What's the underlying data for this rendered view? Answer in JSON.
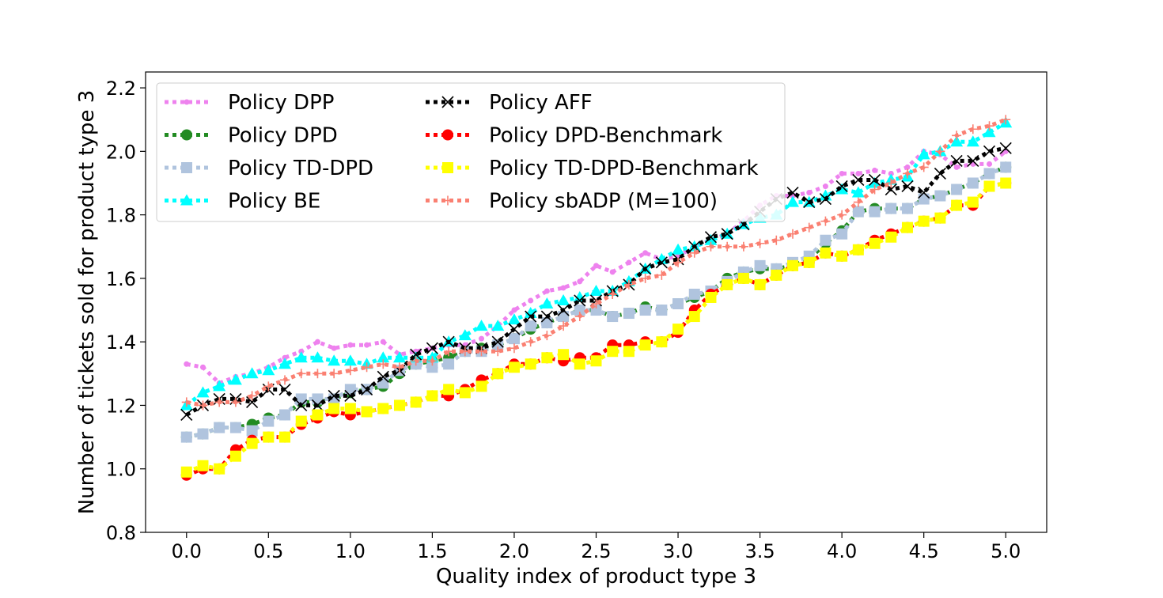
{
  "chart_data": {
    "type": "line",
    "xlabel": "Quality index of product type 3",
    "ylabel": "Number of tickets sold for product type 3",
    "xlim": [
      -0.25,
      5.25
    ],
    "ylim": [
      0.8,
      2.25
    ],
    "xticks": [
      "0.0",
      "0.5",
      "1.0",
      "1.5",
      "2.0",
      "2.5",
      "3.0",
      "3.5",
      "4.0",
      "4.5",
      "5.0"
    ],
    "yticks": [
      "0.8",
      "1.0",
      "1.2",
      "1.4",
      "1.6",
      "1.8",
      "2.0",
      "2.2"
    ],
    "grid": false,
    "legend_position": "top-left",
    "legend_columns": 2,
    "x": [
      0.0,
      0.1,
      0.2,
      0.3,
      0.4,
      0.5,
      0.6,
      0.7,
      0.8,
      0.9,
      1.0,
      1.1,
      1.2,
      1.3,
      1.4,
      1.5,
      1.6,
      1.7,
      1.8,
      1.9,
      2.0,
      2.1,
      2.2,
      2.3,
      2.4,
      2.5,
      2.6,
      2.7,
      2.8,
      2.9,
      3.0,
      3.1,
      3.2,
      3.3,
      3.4,
      3.5,
      3.6,
      3.7,
      3.8,
      3.9,
      4.0,
      4.1,
      4.2,
      4.3,
      4.4,
      4.5,
      4.6,
      4.7,
      4.8,
      4.9,
      5.0
    ],
    "series": [
      {
        "name": "Policy DPP",
        "color": "#ee82ee",
        "marker": "circle-small",
        "values": [
          1.33,
          1.32,
          1.27,
          1.29,
          1.3,
          1.32,
          1.35,
          1.37,
          1.4,
          1.38,
          1.39,
          1.39,
          1.4,
          1.36,
          1.37,
          1.38,
          1.39,
          1.39,
          1.41,
          1.45,
          1.5,
          1.53,
          1.56,
          1.57,
          1.59,
          1.64,
          1.62,
          1.65,
          1.68,
          1.66,
          1.67,
          1.7,
          1.72,
          1.74,
          1.78,
          1.83,
          1.86,
          1.86,
          1.87,
          1.89,
          1.93,
          1.93,
          1.94,
          1.93,
          1.95,
          2.0,
          1.99,
          1.95,
          1.96,
          1.96,
          2.0
        ]
      },
      {
        "name": "Policy DPD",
        "color": "#228b22",
        "marker": "circle",
        "values": [
          1.1,
          1.11,
          1.13,
          1.13,
          1.14,
          1.16,
          1.17,
          1.21,
          1.21,
          1.22,
          1.24,
          1.25,
          1.26,
          1.3,
          1.33,
          1.34,
          1.35,
          1.37,
          1.38,
          1.39,
          1.41,
          1.44,
          1.46,
          1.48,
          1.5,
          1.5,
          1.48,
          1.49,
          1.51,
          1.5,
          1.52,
          1.54,
          1.56,
          1.6,
          1.62,
          1.63,
          1.63,
          1.64,
          1.66,
          1.71,
          1.75,
          1.81,
          1.82,
          1.82,
          1.82,
          1.85,
          1.86,
          1.88,
          1.9,
          1.93,
          1.95
        ]
      },
      {
        "name": "Policy TD-DPD",
        "color": "#b0c4de",
        "marker": "square",
        "values": [
          1.1,
          1.11,
          1.13,
          1.13,
          1.12,
          1.15,
          1.17,
          1.22,
          1.22,
          1.22,
          1.25,
          1.25,
          1.27,
          1.31,
          1.33,
          1.32,
          1.33,
          1.37,
          1.37,
          1.39,
          1.41,
          1.45,
          1.46,
          1.48,
          1.5,
          1.5,
          1.48,
          1.49,
          1.5,
          1.5,
          1.52,
          1.55,
          1.56,
          1.59,
          1.62,
          1.64,
          1.63,
          1.65,
          1.67,
          1.72,
          1.74,
          1.81,
          1.81,
          1.82,
          1.82,
          1.85,
          1.86,
          1.88,
          1.9,
          1.93,
          1.95
        ]
      },
      {
        "name": "Policy BE",
        "color": "#00ffff",
        "marker": "triangle",
        "values": [
          1.2,
          1.24,
          1.26,
          1.28,
          1.3,
          1.31,
          1.33,
          1.35,
          1.35,
          1.34,
          1.34,
          1.33,
          1.35,
          1.35,
          1.35,
          1.35,
          1.4,
          1.42,
          1.45,
          1.45,
          1.47,
          1.49,
          1.52,
          1.53,
          1.54,
          1.56,
          1.56,
          1.59,
          1.63,
          1.66,
          1.69,
          1.7,
          1.72,
          1.74,
          1.77,
          1.79,
          1.8,
          1.84,
          1.84,
          1.86,
          1.88,
          1.87,
          1.9,
          1.91,
          1.92,
          1.99,
          2.0,
          2.03,
          2.03,
          2.06,
          2.09
        ]
      },
      {
        "name": "Policy AFF",
        "color": "#000000",
        "marker": "x",
        "values": [
          1.17,
          1.2,
          1.22,
          1.22,
          1.21,
          1.25,
          1.25,
          1.2,
          1.2,
          1.23,
          1.23,
          1.25,
          1.29,
          1.31,
          1.36,
          1.38,
          1.4,
          1.38,
          1.38,
          1.4,
          1.44,
          1.48,
          1.48,
          1.5,
          1.53,
          1.53,
          1.56,
          1.58,
          1.63,
          1.65,
          1.66,
          1.7,
          1.73,
          1.74,
          1.77,
          1.81,
          1.85,
          1.87,
          1.84,
          1.85,
          1.89,
          1.91,
          1.91,
          1.88,
          1.89,
          1.87,
          1.93,
          1.97,
          1.97,
          2.0,
          2.01
        ]
      },
      {
        "name": "Policy DPD-Benchmark",
        "color": "#ff0000",
        "marker": "circle",
        "values": [
          0.98,
          1.0,
          1.0,
          1.06,
          1.09,
          1.1,
          1.1,
          1.14,
          1.16,
          1.18,
          1.17,
          1.18,
          1.19,
          1.2,
          1.21,
          1.23,
          1.23,
          1.25,
          1.28,
          1.3,
          1.33,
          1.33,
          1.35,
          1.34,
          1.35,
          1.35,
          1.39,
          1.39,
          1.4,
          1.4,
          1.43,
          1.5,
          1.55,
          1.58,
          1.6,
          1.58,
          1.61,
          1.64,
          1.65,
          1.68,
          1.67,
          1.69,
          1.72,
          1.74,
          1.76,
          1.78,
          1.79,
          1.83,
          1.83,
          1.89,
          1.9
        ]
      },
      {
        "name": "Policy TD-DPD-Benchmark",
        "color": "#ffff00",
        "marker": "square",
        "values": [
          0.99,
          1.01,
          1.0,
          1.04,
          1.08,
          1.1,
          1.1,
          1.15,
          1.17,
          1.19,
          1.19,
          1.18,
          1.19,
          1.2,
          1.21,
          1.23,
          1.25,
          1.24,
          1.26,
          1.3,
          1.32,
          1.33,
          1.35,
          1.36,
          1.33,
          1.34,
          1.37,
          1.37,
          1.39,
          1.4,
          1.44,
          1.48,
          1.54,
          1.58,
          1.6,
          1.58,
          1.61,
          1.64,
          1.65,
          1.68,
          1.67,
          1.69,
          1.71,
          1.73,
          1.76,
          1.78,
          1.79,
          1.83,
          1.84,
          1.89,
          1.9
        ]
      },
      {
        "name": "Policy sbADP (M=100)",
        "color": "#fa8072",
        "marker": "plus",
        "values": [
          1.21,
          1.2,
          1.21,
          1.21,
          1.23,
          1.26,
          1.28,
          1.3,
          1.3,
          1.3,
          1.31,
          1.32,
          1.33,
          1.32,
          1.34,
          1.34,
          1.37,
          1.37,
          1.37,
          1.37,
          1.38,
          1.4,
          1.42,
          1.45,
          1.48,
          1.52,
          1.55,
          1.58,
          1.6,
          1.61,
          1.65,
          1.68,
          1.7,
          1.7,
          1.7,
          1.71,
          1.72,
          1.74,
          1.76,
          1.78,
          1.8,
          1.84,
          1.88,
          1.9,
          1.93,
          1.95,
          2.0,
          2.05,
          2.07,
          2.08,
          2.1
        ]
      }
    ]
  }
}
